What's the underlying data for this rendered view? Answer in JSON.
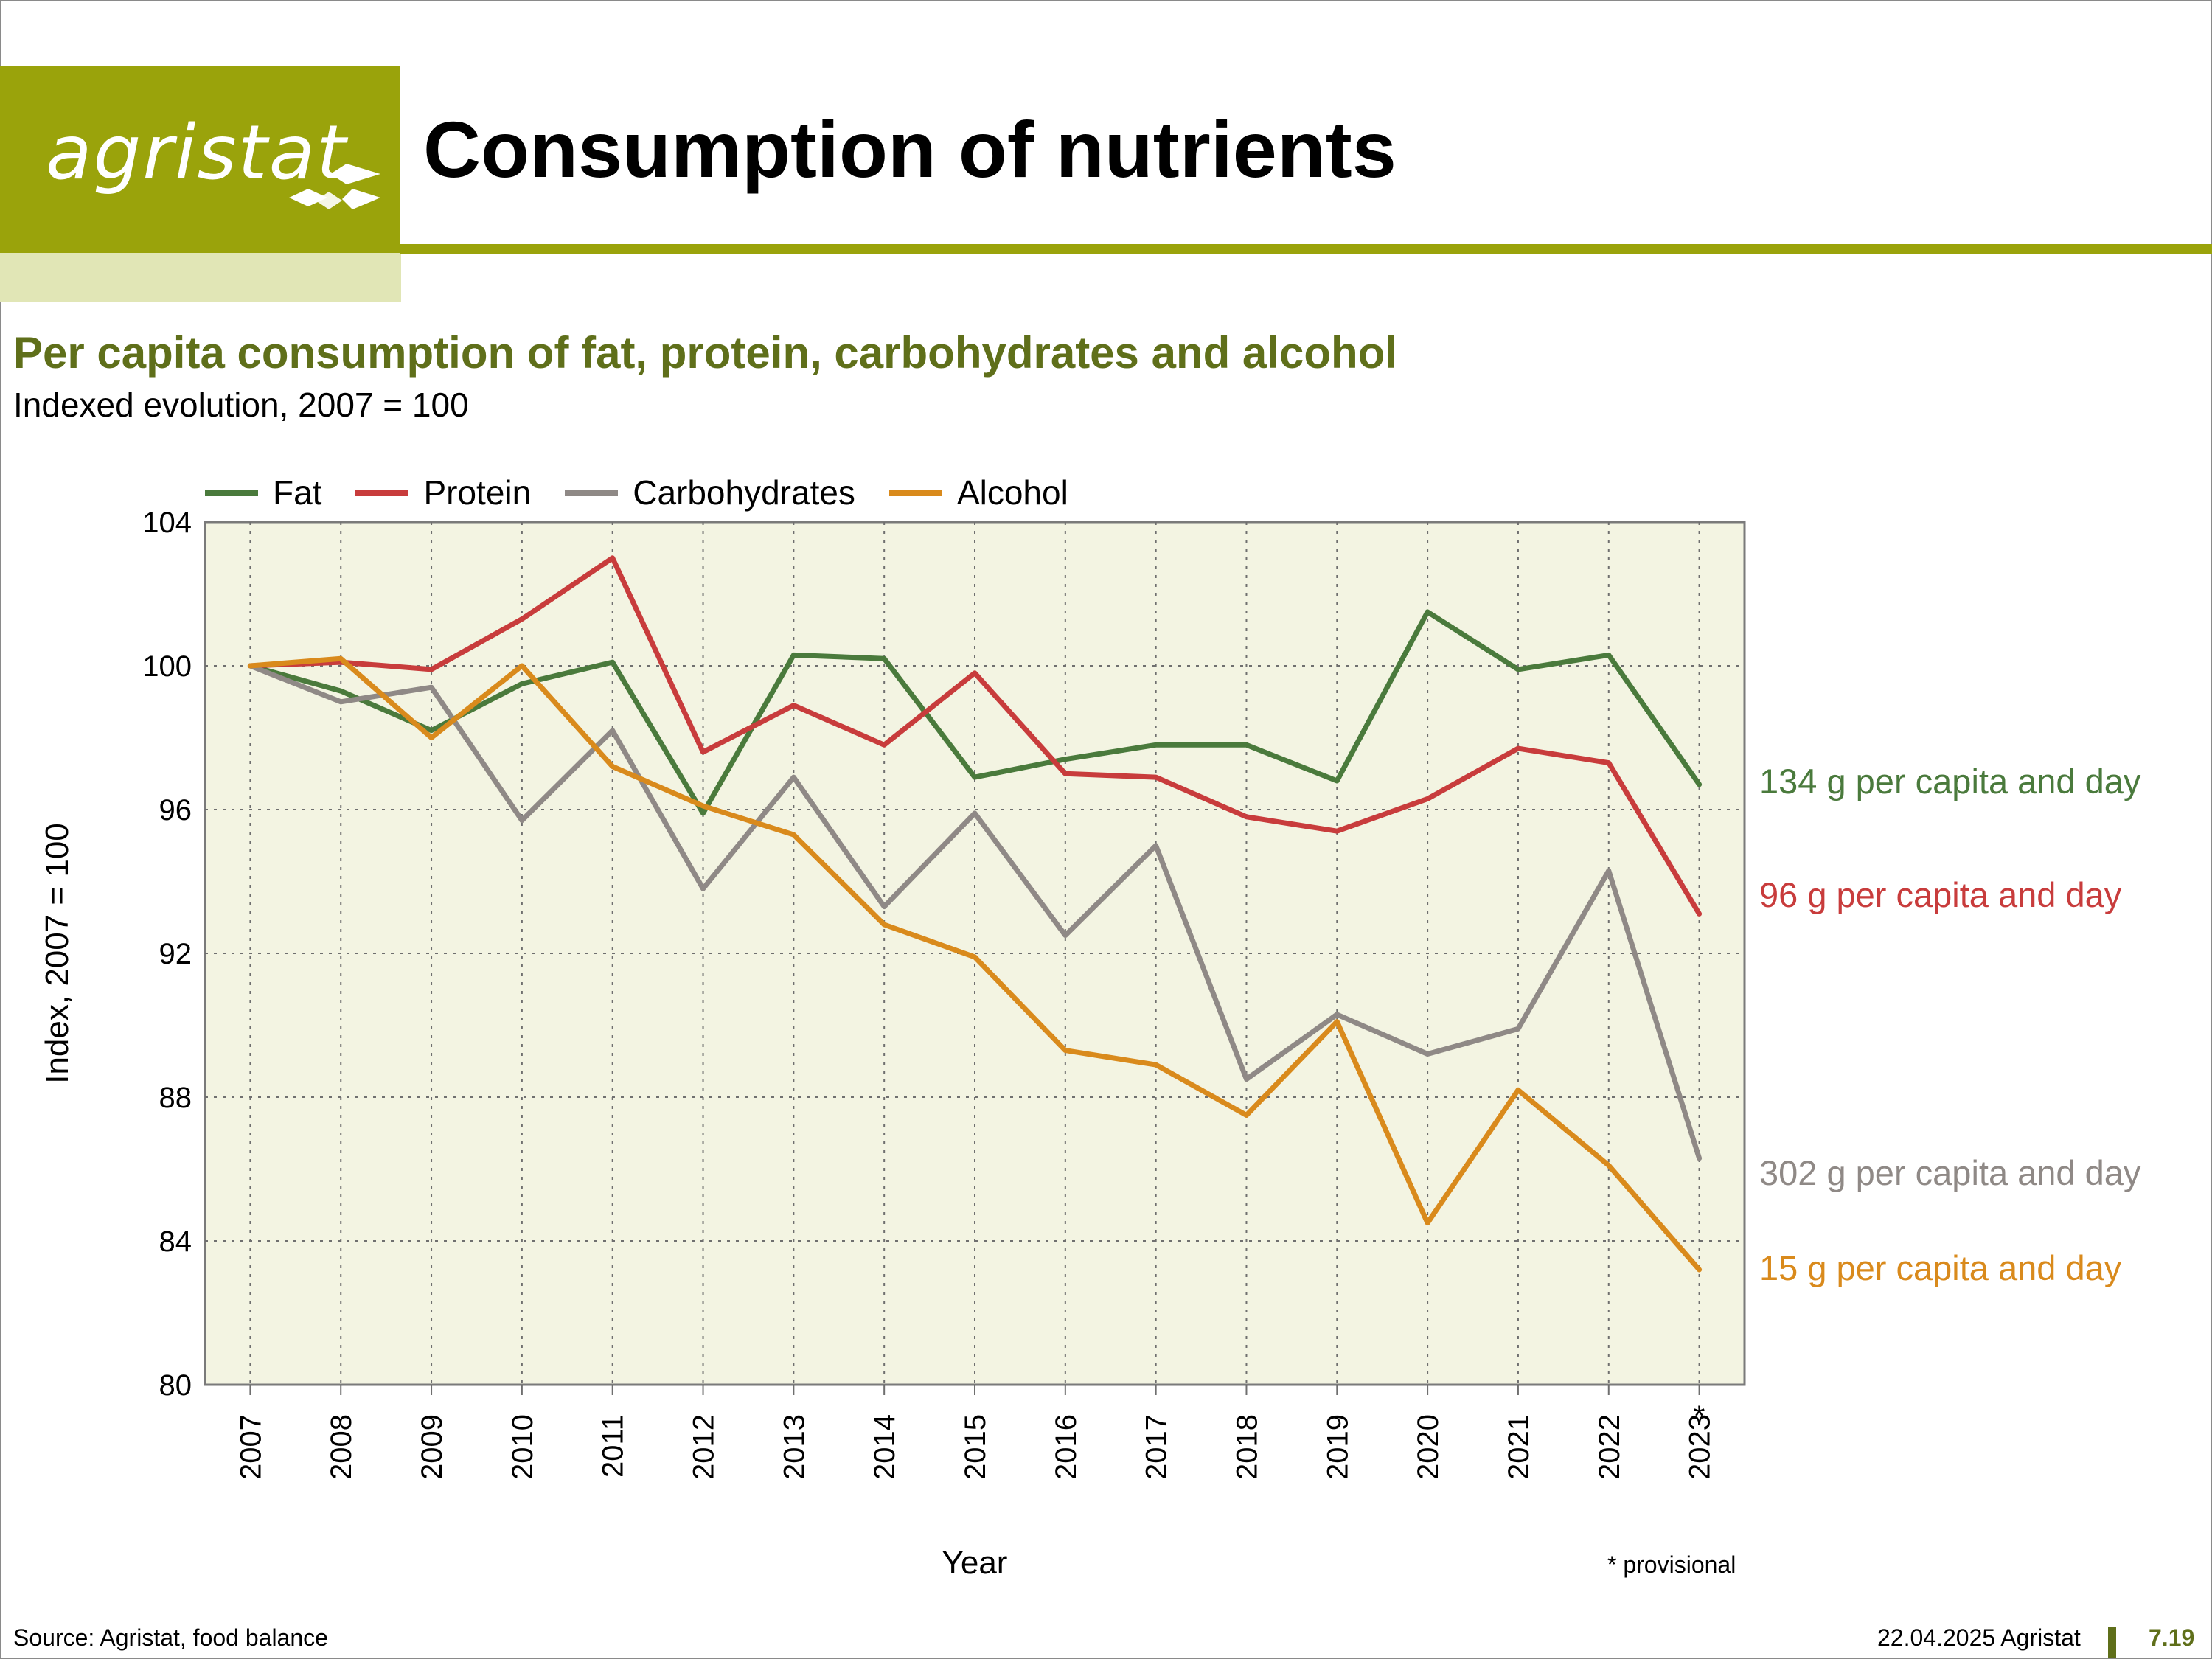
{
  "logo": {
    "text": "agristat"
  },
  "page_title": "Consumption of nutrients",
  "colors": {
    "brand": "#9aa30b",
    "subtitle": "#5f6f1a",
    "plot_bg": "#f3f4e2"
  },
  "chart_data": {
    "type": "line",
    "title": "Per capita consumption of fat, protein, carbohydrates and alcohol",
    "subtitle": "Indexed evolution, 2007 = 100",
    "xlabel": "Year",
    "ylabel": "Index, 2007 = 100",
    "ylim": [
      80,
      104
    ],
    "yticks": [
      80,
      84,
      88,
      92,
      96,
      100,
      104
    ],
    "grid": true,
    "legend": "top",
    "x": [
      "2007",
      "2008",
      "2009",
      "2010",
      "2011",
      "2012",
      "2013",
      "2014",
      "2015",
      "2016",
      "2017",
      "2018",
      "2019",
      "2020",
      "2021",
      "2022",
      "2023"
    ],
    "x_marker_last": "*",
    "series": [
      {
        "name": "Fat",
        "color": "#4a7a3c",
        "values": [
          100,
          99.3,
          98.2,
          99.5,
          100.1,
          95.9,
          100.3,
          100.2,
          96.9,
          97.4,
          97.8,
          97.8,
          96.8,
          101.5,
          99.9,
          100.3,
          96.7
        ],
        "note": "134 g per capita and day"
      },
      {
        "name": "Protein",
        "color": "#c83c3c",
        "values": [
          100,
          100.1,
          99.9,
          101.3,
          103.0,
          97.6,
          98.9,
          97.8,
          99.8,
          97.0,
          96.9,
          95.8,
          95.4,
          96.3,
          97.7,
          97.3,
          93.1
        ],
        "note": "96 g per capita and day"
      },
      {
        "name": "Carbohydrates",
        "color": "#8f8986",
        "values": [
          100,
          99.0,
          99.4,
          95.7,
          98.2,
          93.8,
          96.9,
          93.3,
          95.9,
          92.5,
          95.0,
          88.5,
          90.3,
          89.2,
          89.9,
          94.3,
          86.3
        ],
        "note": "302 g per capita and day"
      },
      {
        "name": "Alcohol",
        "color": "#d98a1c",
        "values": [
          100,
          100.2,
          98.0,
          100.0,
          97.2,
          96.1,
          95.3,
          92.8,
          91.9,
          89.3,
          88.9,
          87.5,
          90.1,
          84.5,
          88.2,
          86.1,
          83.2
        ],
        "note": "15 g per capita and day"
      }
    ],
    "annotation": "* provisional"
  },
  "footer": {
    "source": "Source: Agristat, food balance",
    "date": "22.04.2025 Agristat",
    "page": "7.19"
  }
}
